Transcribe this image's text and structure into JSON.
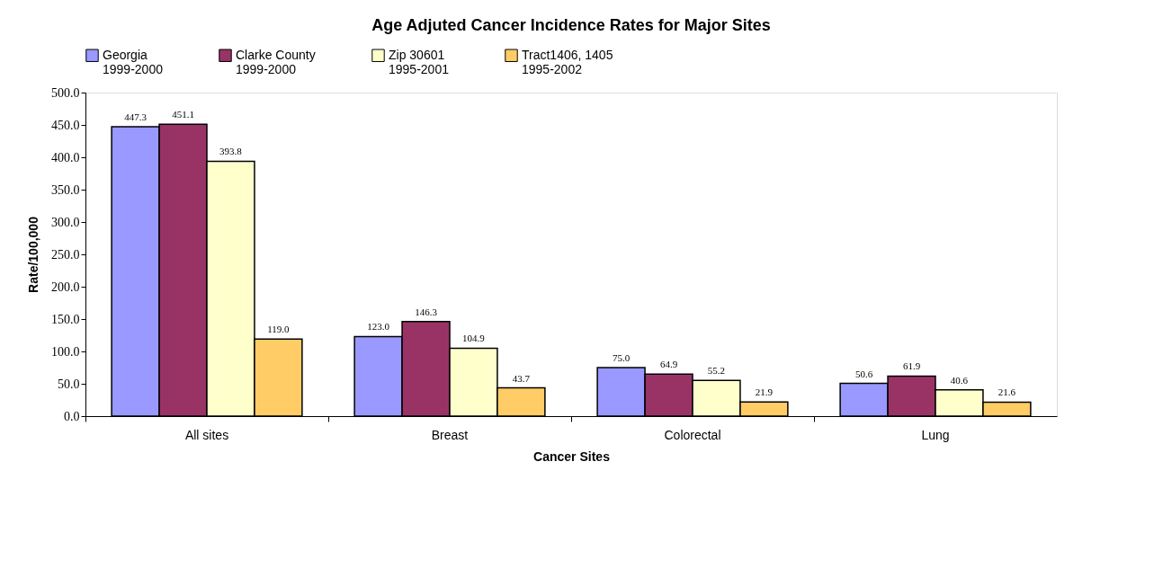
{
  "chart_data": {
    "type": "bar",
    "title": "Age Adjuted Cancer Incidence Rates for Major Sites",
    "xlabel": "Cancer Sites",
    "ylabel": "Rate/100,000",
    "categories": [
      "All sites",
      "Breast",
      "Colorectal",
      "Lung"
    ],
    "series": [
      {
        "name": "Georgia\n1999-2000",
        "color": "#9999ff",
        "values": [
          447.3,
          123.0,
          75.0,
          50.6
        ],
        "value_labels": [
          "447.3",
          "123.0",
          "75.0",
          "50.6"
        ]
      },
      {
        "name": "Clarke County\n1999-2000",
        "color": "#993366",
        "values": [
          451.1,
          146.3,
          64.9,
          61.9
        ],
        "value_labels": [
          "451.1",
          "146.3",
          "64.9",
          "61.9"
        ]
      },
      {
        "name": "Zip 30601\n1995-2001",
        "color": "#ffffcc",
        "values": [
          393.8,
          104.9,
          55.2,
          40.6
        ],
        "value_labels": [
          "393.8",
          "104.9",
          "55.2",
          "40.6"
        ]
      },
      {
        "name": "Tract1406, 1405\n1995-2002",
        "color": "#ffcc66",
        "values": [
          119.0,
          43.7,
          21.9,
          21.6
        ],
        "value_labels": [
          "119.0",
          "43.7",
          "21.9",
          "21.6"
        ]
      }
    ],
    "ylim": [
      0,
      500
    ],
    "yticks": [
      {
        "value": 0,
        "label": "0.0"
      },
      {
        "value": 50,
        "label": "50.0"
      },
      {
        "value": 100,
        "label": "100.0"
      },
      {
        "value": 150,
        "label": "150.0"
      },
      {
        "value": 200,
        "label": "200.0"
      },
      {
        "value": 250,
        "label": "250.0"
      },
      {
        "value": 300,
        "label": "300.0"
      },
      {
        "value": 350,
        "label": "350.0"
      },
      {
        "value": 400,
        "label": "400.0"
      },
      {
        "value": 450,
        "label": "450.0"
      },
      {
        "value": 500,
        "label": "500.0"
      }
    ],
    "legend": "top",
    "grid": false
  }
}
